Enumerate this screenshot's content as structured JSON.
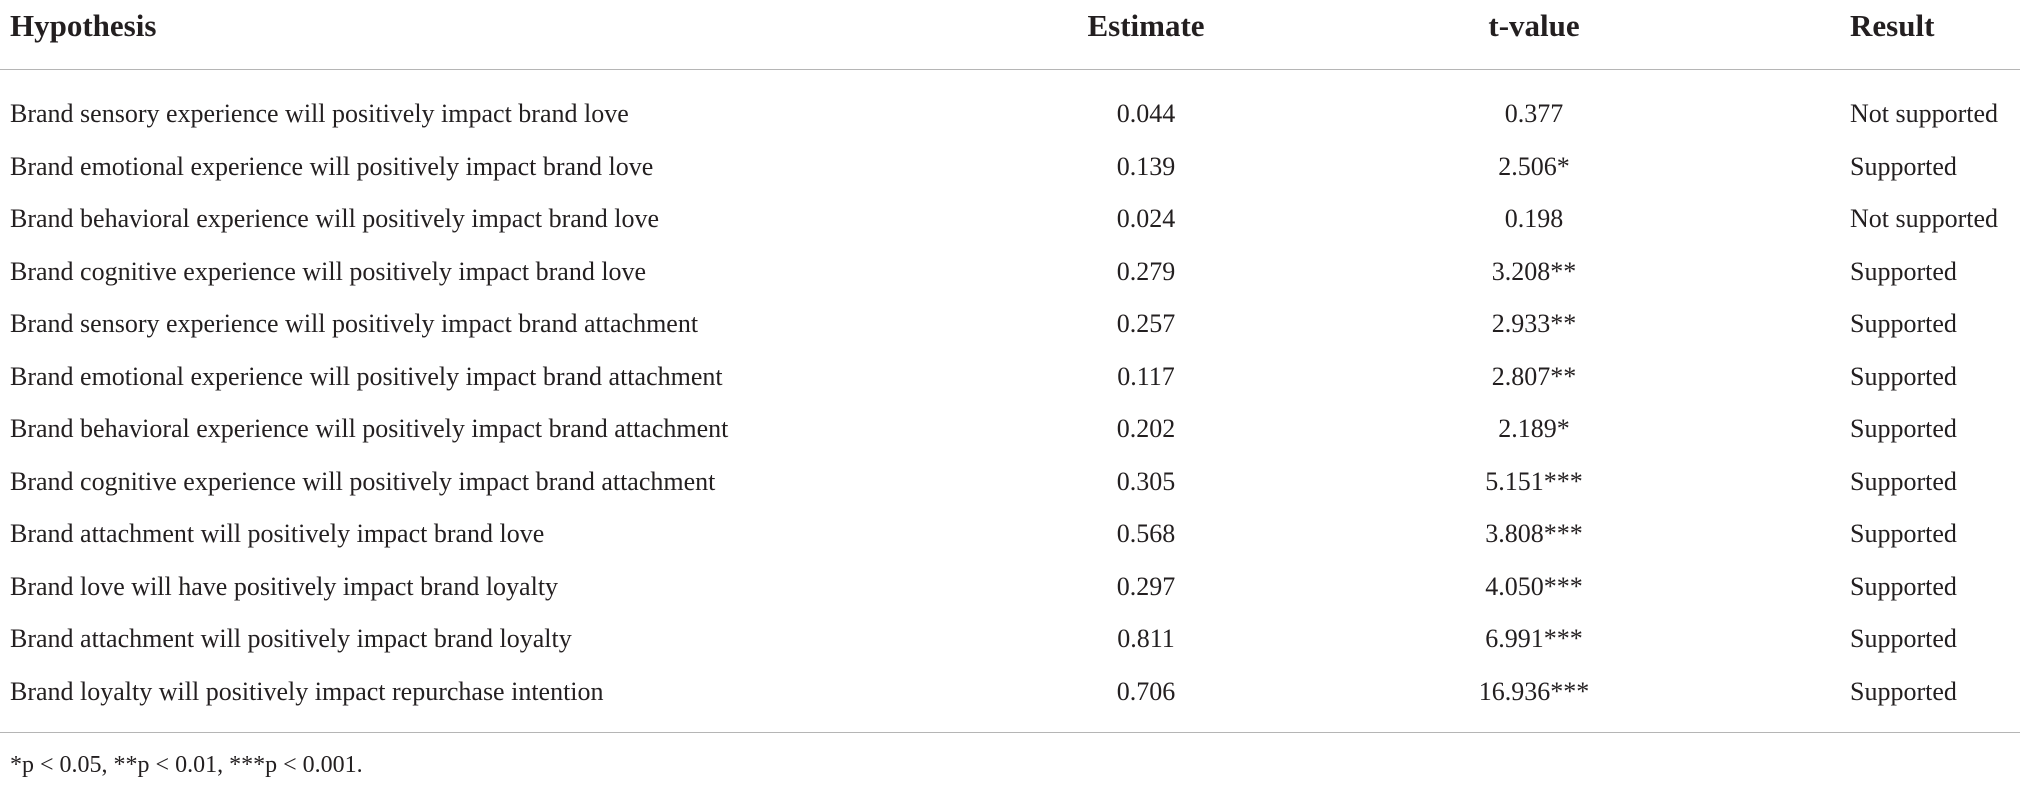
{
  "table": {
    "header": [
      "Hypothesis",
      "Estimate",
      "t-value",
      "Result"
    ],
    "rows": [
      [
        "Brand sensory experience will positively impact brand love",
        "0.044",
        "0.377",
        "Not supported"
      ],
      [
        "Brand emotional experience will positively impact brand love",
        "0.139",
        "2.506*",
        "Supported"
      ],
      [
        "Brand behavioral experience will positively impact brand love",
        "0.024",
        "0.198",
        "Not supported"
      ],
      [
        "Brand cognitive experience will positively impact brand love",
        "0.279",
        "3.208**",
        "Supported"
      ],
      [
        "Brand sensory experience will positively impact brand attachment",
        "0.257",
        "2.933**",
        "Supported"
      ],
      [
        "Brand emotional experience will positively impact brand attachment",
        "0.117",
        "2.807**",
        "Supported"
      ],
      [
        "Brand behavioral experience will positively impact brand attachment",
        "0.202",
        "2.189*",
        "Supported"
      ],
      [
        "Brand cognitive experience will positively impact brand attachment",
        "0.305",
        "5.151***",
        "Supported"
      ],
      [
        "Brand attachment will positively impact brand love",
        "0.568",
        "3.808***",
        "Supported"
      ],
      [
        "Brand love will have positively impact brand loyalty",
        "0.297",
        "4.050***",
        "Supported"
      ],
      [
        "Brand attachment will positively impact brand loyalty",
        "0.811",
        "6.991***",
        "Supported"
      ],
      [
        "Brand loyalty will positively impact repurchase intention",
        "0.706",
        "16.936***",
        "Supported"
      ]
    ],
    "footnote": "*p < 0.05, **p < 0.01, ***p < 0.001."
  }
}
